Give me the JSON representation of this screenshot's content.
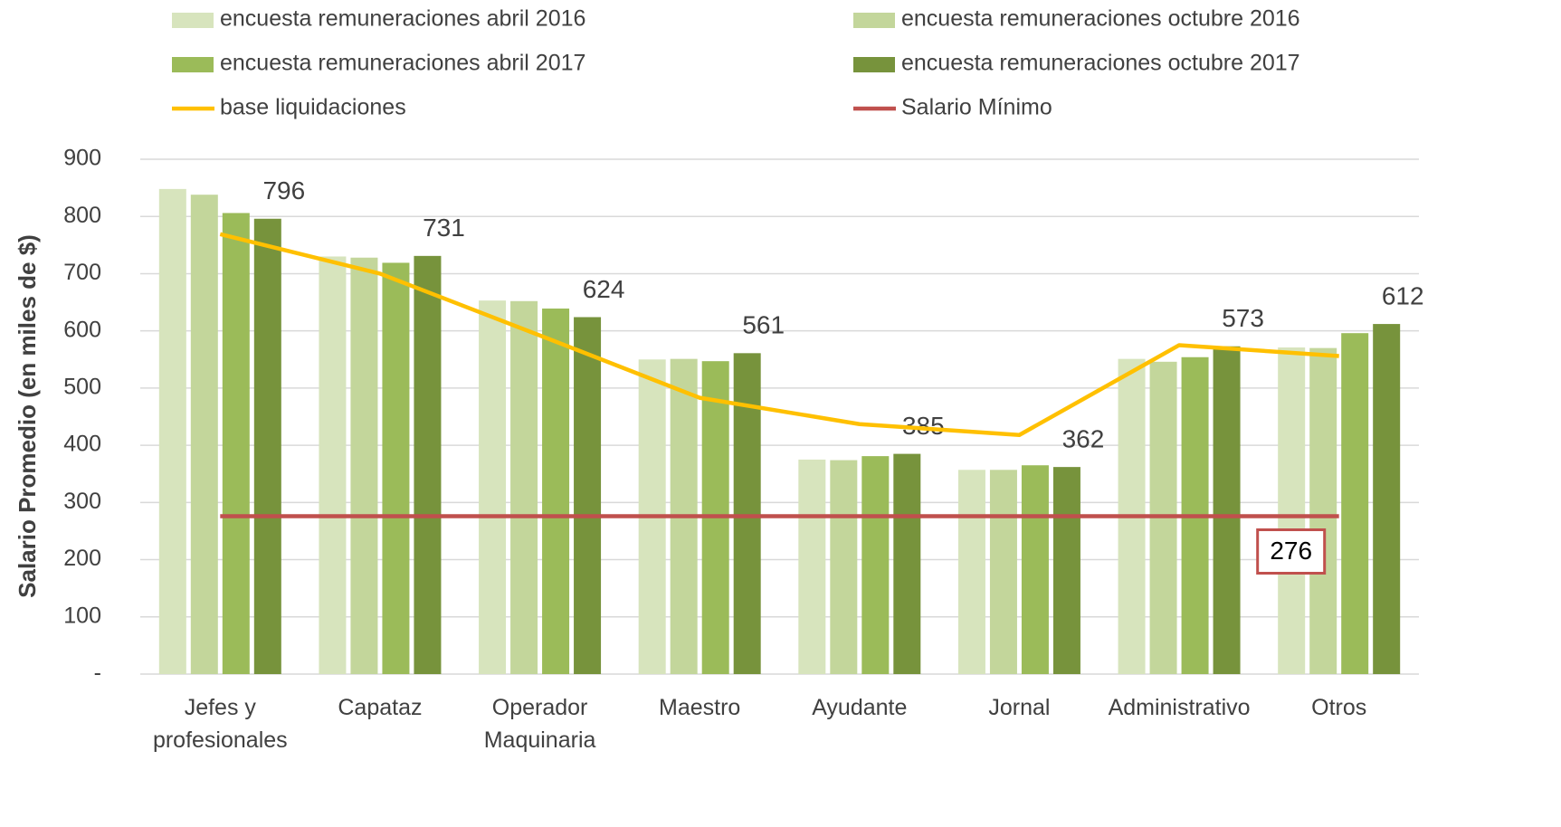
{
  "chart_data": {
    "type": "bar",
    "y_label": "Salario Promedio (en miles de $)",
    "categories": [
      "Jefes y\nprofesionales",
      "Capataz",
      "Operador\nMaquinaria",
      "Maestro",
      "Ayudante",
      "Jornal",
      "Administrativo",
      "Otros"
    ],
    "series": [
      {
        "name": "encuesta remuneraciones abril 2016",
        "type": "bar",
        "color": "#d7e4bd",
        "values": [
          848,
          730,
          653,
          550,
          375,
          357,
          551,
          571
        ]
      },
      {
        "name": "encuesta remuneraciones octubre 2016",
        "type": "bar",
        "color": "#c3d69b",
        "values": [
          838,
          728,
          652,
          551,
          374,
          357,
          546,
          570
        ]
      },
      {
        "name": "encuesta remuneraciones abril 2017",
        "type": "bar",
        "color": "#9bbb59",
        "values": [
          806,
          719,
          639,
          547,
          381,
          365,
          554,
          596
        ]
      },
      {
        "name": "encuesta remuneraciones octubre 2017",
        "type": "bar",
        "color": "#77933c",
        "values": [
          796,
          731,
          624,
          561,
          385,
          362,
          573,
          612
        ],
        "data_labels": true
      },
      {
        "name": "base liquidaciones",
        "type": "line",
        "color": "#ffc000",
        "values": [
          769,
          700,
          592,
          483,
          437,
          418,
          575,
          556
        ]
      },
      {
        "name": "Salario Mínimo",
        "type": "line",
        "color": "#c0504d",
        "values": [
          276,
          276,
          276,
          276,
          276,
          276,
          276,
          276
        ],
        "label_last": true
      }
    ],
    "ylim": [
      0,
      900
    ],
    "yticks": [
      {
        "value": 0,
        "label": "-"
      },
      100,
      200,
      300,
      400,
      500,
      600,
      700,
      800,
      900
    ],
    "grid": true
  }
}
